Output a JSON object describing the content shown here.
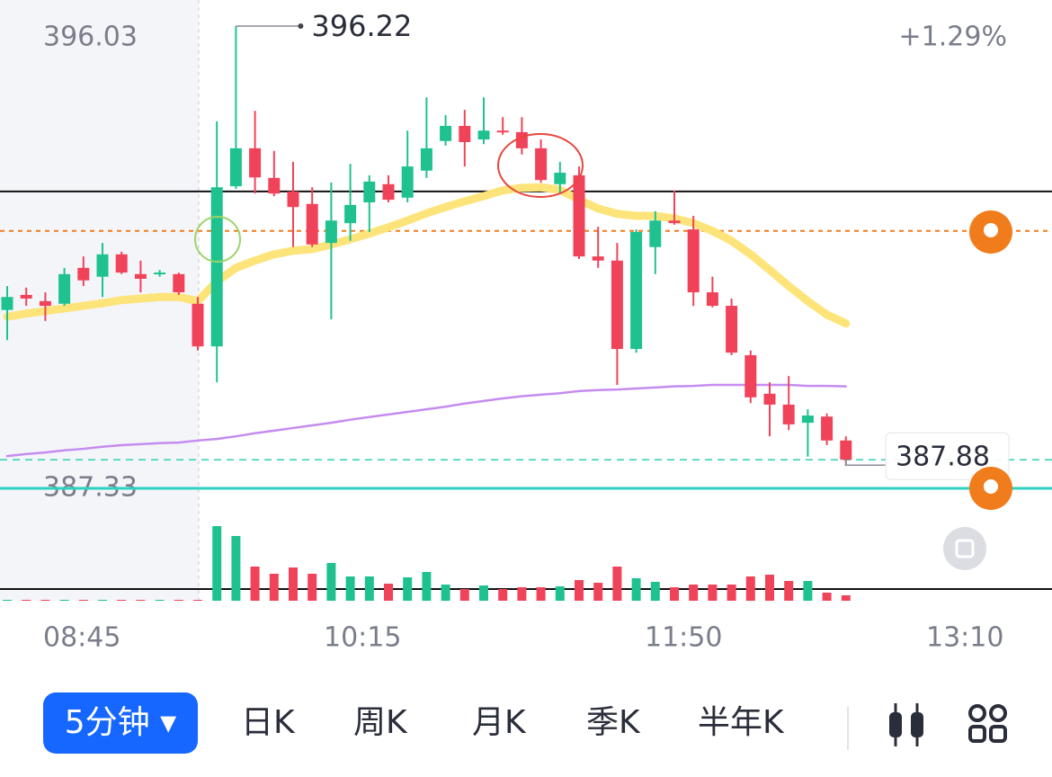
{
  "chart_data": {
    "type": "candlestick",
    "up_color": "#1fc28f",
    "down_color": "#f0435a",
    "ylim": [
      387.33,
      396.03
    ],
    "yticks": [
      396.03,
      387.33
    ],
    "change": "+1.29%",
    "last_price": 387.88,
    "xticks": [
      "08:45",
      "10:15",
      "11:50",
      "13:10"
    ],
    "open": [
      390.76,
      391.05,
      390.93,
      390.88,
      391.57,
      391.4,
      391.83,
      391.45,
      391.45,
      391.45,
      390.88,
      390.06,
      393.14,
      393.87,
      393.3,
      393.04,
      392.8,
      392.05,
      392.43,
      392.83,
      393.18,
      392.92,
      393.44,
      394.01,
      394.3,
      394.04,
      394.21,
      394.18,
      393.87,
      393.18,
      393.35,
      391.79,
      391.71,
      390.01,
      391.97,
      392.48,
      392.31,
      391.1,
      390.84,
      389.89,
      389.15,
      388.94,
      388.59,
      388.71,
      388.25
    ],
    "high": [
      391.22,
      391.19,
      391.1,
      391.57,
      391.79,
      392.05,
      391.88,
      391.71,
      391.53,
      391.48,
      391.01,
      394.39,
      396.22,
      394.59,
      393.82,
      393.61,
      393.12,
      393.21,
      393.57,
      393.35,
      393.35,
      394.21,
      394.85,
      394.51,
      394.61,
      394.85,
      394.47,
      394.47,
      394.04,
      393.61,
      393.52,
      392.36,
      392.05,
      392.31,
      392.66,
      393.06,
      392.57,
      391.4,
      390.98,
      389.98,
      389.37,
      389.49,
      388.85,
      388.77,
      388.33
    ],
    "low": [
      390.18,
      390.84,
      390.55,
      390.84,
      391.22,
      391.01,
      391.45,
      391.1,
      391.4,
      391.05,
      389.98,
      389.37,
      393.09,
      393.0,
      392.95,
      391.97,
      391.97,
      390.58,
      392.09,
      392.26,
      392.83,
      392.83,
      393.3,
      393.92,
      393.52,
      393.95,
      394.13,
      393.75,
      393.21,
      393.0,
      391.74,
      391.57,
      389.32,
      389.94,
      391.45,
      392.4,
      390.84,
      390.81,
      389.89,
      388.97,
      388.33,
      388.45,
      387.94,
      388.16,
      387.76
    ],
    "close": [
      391.01,
      390.98,
      390.84,
      391.45,
      391.33,
      391.83,
      391.48,
      391.36,
      391.48,
      391.1,
      390.06,
      393.12,
      393.87,
      393.31,
      393.0,
      392.74,
      392.02,
      392.48,
      392.78,
      393.23,
      392.88,
      393.52,
      393.87,
      394.3,
      393.99,
      394.21,
      394.18,
      393.87,
      393.26,
      393.4,
      391.79,
      391.71,
      390.01,
      392.26,
      392.48,
      392.43,
      391.1,
      390.84,
      389.94,
      389.08,
      388.94,
      388.56,
      388.73,
      388.25,
      387.88
    ],
    "volume": [
      1,
      1,
      1,
      1,
      1,
      1,
      1,
      1,
      1,
      1,
      1,
      83,
      72,
      38,
      30,
      37,
      30,
      42,
      27,
      27,
      19,
      26,
      32,
      18,
      13,
      17,
      13,
      15,
      15,
      16,
      23,
      20,
      38,
      25,
      21,
      15,
      18,
      18,
      18,
      27,
      29,
      22,
      22,
      9,
      6
    ],
    "vollim": [
      0,
      100
    ],
    "series": [
      {
        "color": "#fde47a",
        "width": 9,
        "values": [
          390.63,
          390.69,
          390.74,
          390.79,
          390.84,
          390.89,
          390.95,
          390.98,
          391.01,
          391.01,
          390.93,
          391.31,
          391.57,
          391.71,
          391.83,
          391.9,
          391.93,
          392.02,
          392.12,
          392.23,
          392.35,
          392.48,
          392.62,
          392.74,
          392.85,
          392.95,
          393.06,
          393.11,
          393.12,
          393.07,
          392.88,
          392.71,
          392.61,
          392.57,
          392.57,
          392.52,
          392.43,
          392.28,
          392.09,
          391.83,
          391.53,
          391.22,
          390.93,
          390.67,
          390.5
        ]
      },
      {
        "color": "#c58cf0",
        "width": 2.5,
        "values": [
          387.95,
          387.99,
          388.02,
          388.06,
          388.09,
          388.13,
          388.16,
          388.18,
          388.2,
          388.21,
          388.25,
          388.28,
          388.33,
          388.39,
          388.44,
          388.49,
          388.54,
          388.59,
          388.65,
          388.7,
          388.75,
          388.8,
          388.85,
          388.9,
          388.96,
          389.01,
          389.06,
          389.1,
          389.13,
          389.16,
          389.2,
          389.22,
          389.23,
          389.25,
          389.27,
          389.29,
          389.3,
          389.32,
          389.32,
          389.32,
          389.32,
          389.32,
          389.3,
          389.3,
          389.29
        ]
      }
    ],
    "hlines": [
      {
        "value": 393.04,
        "color": "#111111"
      },
      {
        "value": 392.28,
        "color": "#f07c1c",
        "dash": "5 5"
      }
    ]
  },
  "toolbar": {
    "interval": "5分钟",
    "periods": [
      "日K",
      "周K",
      "月K",
      "季K",
      "半年K"
    ]
  }
}
